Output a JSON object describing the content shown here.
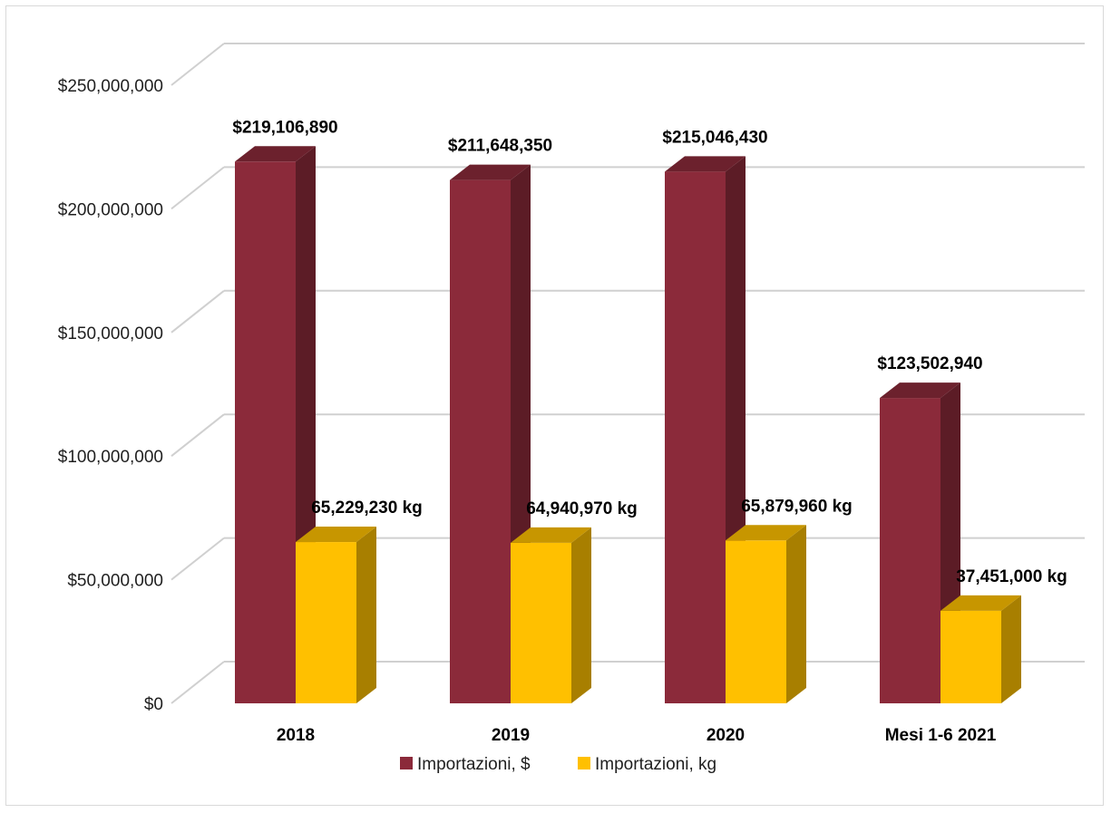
{
  "chart_data": {
    "type": "bar",
    "style": "3d-clustered-column",
    "categories": [
      "2018",
      "2019",
      "2020",
      "Mesi 1-6 2021"
    ],
    "series": [
      {
        "name": "Importazioni, $",
        "color": "#8b2a3a",
        "values": [
          219106890,
          211648350,
          215046430,
          123502940
        ],
        "labels": [
          "$219,106,890",
          "$211,648,350",
          "$215,046,430",
          "$123,502,940"
        ]
      },
      {
        "name": "Importazioni, kg",
        "color": "#ffc000",
        "values": [
          65229230,
          64940970,
          65879960,
          37451000
        ],
        "labels": [
          "65,229,230 kg",
          "64,940,970 kg",
          "65,879,960 kg",
          "37,451,000 kg"
        ]
      }
    ],
    "y_ticks": [
      "$0",
      "$50,000,000",
      "$100,000,000",
      "$150,000,000",
      "$200,000,000",
      "$250,000,000"
    ],
    "ylim": [
      0,
      250000000
    ],
    "grid": true,
    "legend": "bottom"
  }
}
